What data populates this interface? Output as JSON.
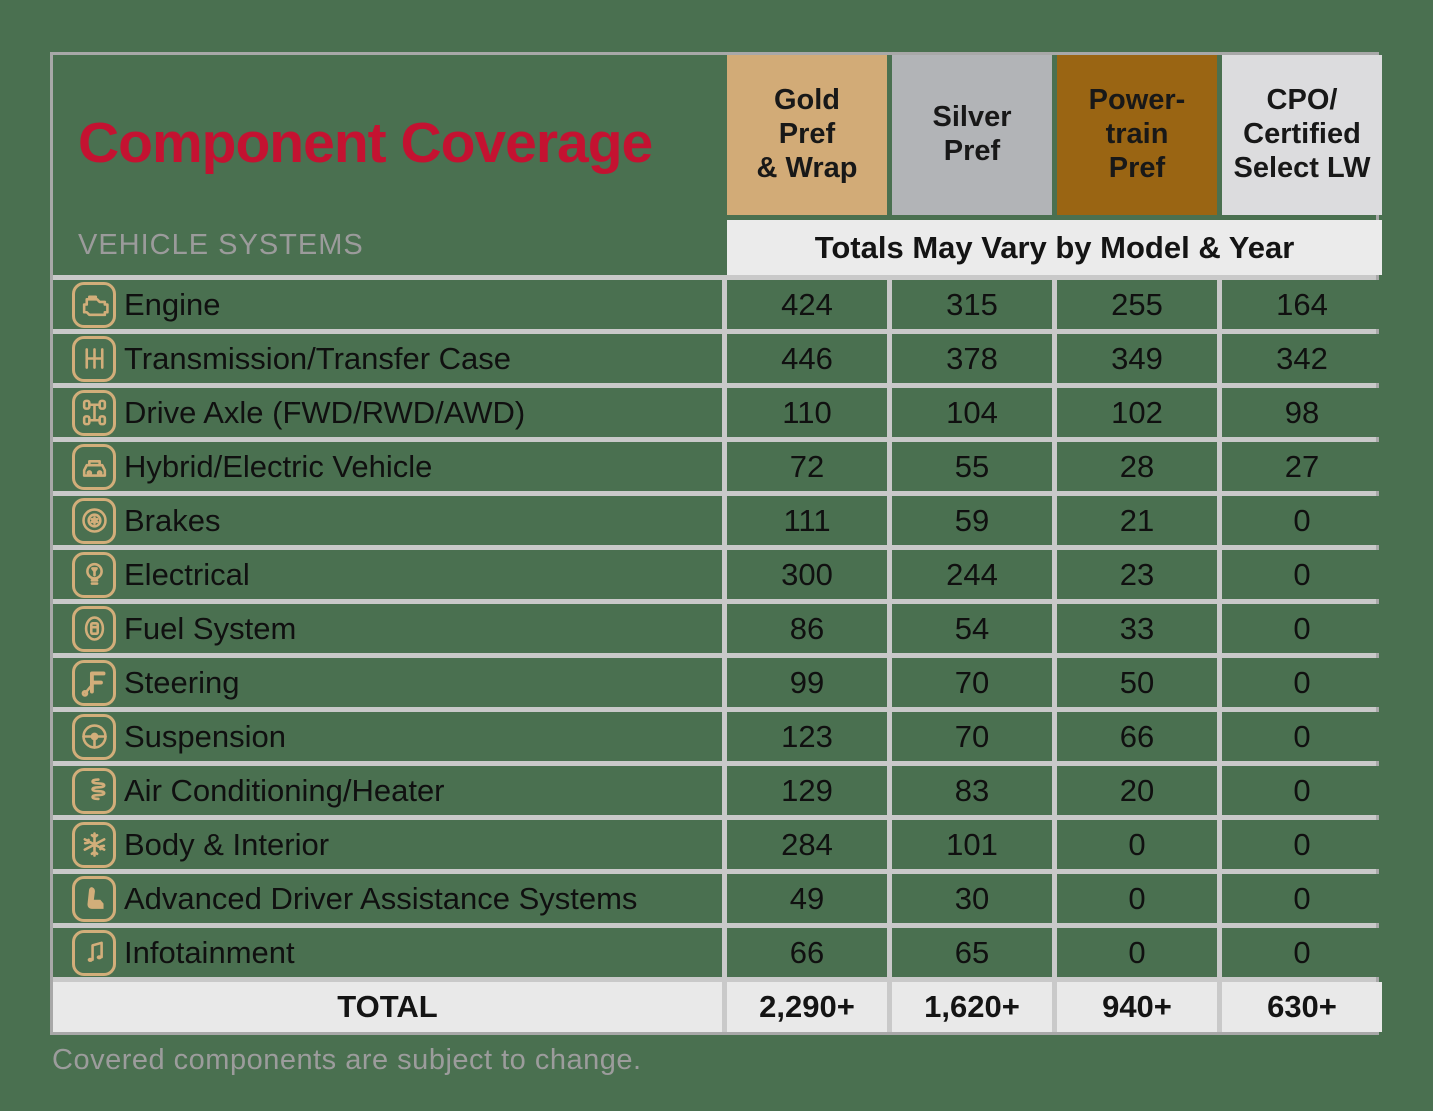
{
  "title": "Component Coverage",
  "subtitle": "VEHICLE SYSTEMS",
  "columns": [
    {
      "label": "Gold\nPref\n& Wrap",
      "color": "#d2ab77"
    },
    {
      "label": "Silver\nPref",
      "color": "#b2b4b7"
    },
    {
      "label": "Power-\ntrain\nPref",
      "color": "#9a6513"
    },
    {
      "label": "CPO/\nCertified\nSelect LW",
      "color": "#dcdcde"
    }
  ],
  "totals_note": "Totals May Vary by Model & Year",
  "rows": [
    {
      "label": "Engine",
      "icon": "engine-icon",
      "values": [
        "424",
        "315",
        "255",
        "164"
      ]
    },
    {
      "label": "Transmission/Transfer Case",
      "icon": "gear-shifter-icon",
      "values": [
        "446",
        "378",
        "349",
        "342"
      ]
    },
    {
      "label": "Drive Axle (FWD/RWD/AWD)",
      "icon": "drivetrain-icon",
      "values": [
        "110",
        "104",
        "102",
        "98"
      ]
    },
    {
      "label": "Hybrid/Electric Vehicle",
      "icon": "hybrid-car-icon",
      "values": [
        "72",
        "55",
        "28",
        "27"
      ]
    },
    {
      "label": "Brakes",
      "icon": "brake-disc-icon",
      "values": [
        "111",
        "59",
        "21",
        "0"
      ]
    },
    {
      "label": "Electrical",
      "icon": "lightbulb-icon",
      "values": [
        "300",
        "244",
        "23",
        "0"
      ]
    },
    {
      "label": "Fuel System",
      "icon": "fuel-pump-icon",
      "values": [
        "86",
        "54",
        "33",
        "0"
      ]
    },
    {
      "label": "Steering",
      "icon": "wrench-f-icon",
      "values": [
        "99",
        "70",
        "50",
        "0"
      ]
    },
    {
      "label": "Suspension",
      "icon": "steering-wheel-icon",
      "values": [
        "123",
        "70",
        "66",
        "0"
      ]
    },
    {
      "label": "Air Conditioning/Heater",
      "icon": "coil-spring-icon",
      "values": [
        "129",
        "83",
        "20",
        "0"
      ]
    },
    {
      "label": "Body & Interior",
      "icon": "snowflake-icon",
      "values": [
        "284",
        "101",
        "0",
        "0"
      ]
    },
    {
      "label": "Advanced Driver Assistance Systems",
      "icon": "car-seat-icon",
      "values": [
        "49",
        "30",
        "0",
        "0"
      ]
    },
    {
      "label": "Infotainment",
      "icon": "music-note-icon",
      "values": [
        "66",
        "65",
        "0",
        "0"
      ]
    }
  ],
  "total": {
    "label": "TOTAL",
    "values": [
      "2,290+",
      "1,620+",
      "940+",
      "630+"
    ]
  },
  "footer": "Covered components are subject to change.",
  "colors": {
    "background": "#4a7050",
    "title_red": "#c41231",
    "icon_tan": "#d2ae7a",
    "grid_line": "#c9c9c9",
    "border": "#a8a8a8",
    "totals_strip": "#ebebeb",
    "total_row": "#e9e9e9",
    "muted_text": "#9b9b9b"
  }
}
